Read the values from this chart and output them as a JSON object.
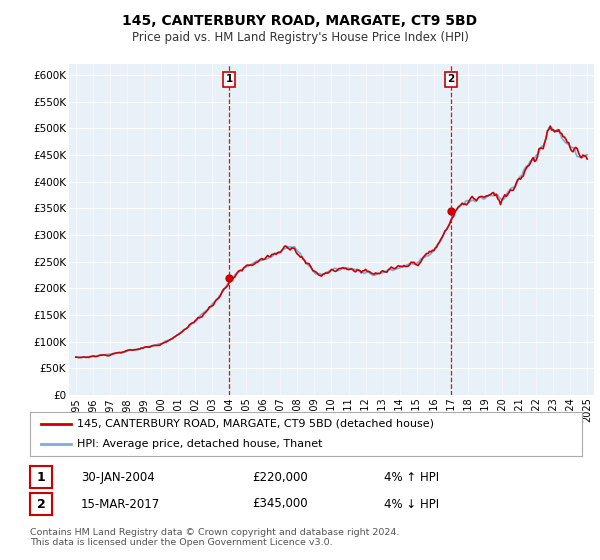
{
  "title1": "145, CANTERBURY ROAD, MARGATE, CT9 5BD",
  "title2": "Price paid vs. HM Land Registry's House Price Index (HPI)",
  "legend_line1": "145, CANTERBURY ROAD, MARGATE, CT9 5BD (detached house)",
  "legend_line2": "HPI: Average price, detached house, Thanet",
  "annotation1_label": "1",
  "annotation1_date": "30-JAN-2004",
  "annotation1_price": "£220,000",
  "annotation1_hpi": "4% ↑ HPI",
  "annotation2_label": "2",
  "annotation2_date": "15-MAR-2017",
  "annotation2_price": "£345,000",
  "annotation2_hpi": "4% ↓ HPI",
  "footnote": "Contains HM Land Registry data © Crown copyright and database right 2024.\nThis data is licensed under the Open Government Licence v3.0.",
  "ylim": [
    0,
    620000
  ],
  "yticks": [
    0,
    50000,
    100000,
    150000,
    200000,
    250000,
    300000,
    350000,
    400000,
    450000,
    500000,
    550000,
    600000
  ],
  "hpi_color": "#7aaddc",
  "price_color": "#cc0000",
  "vline_color": "#cc0000",
  "background_plot": "#e8f0f8",
  "background_fig": "#ffffff",
  "sale1_year": 2004,
  "sale1_price": 220000,
  "sale2_year": 2017,
  "sale2_price": 345000
}
